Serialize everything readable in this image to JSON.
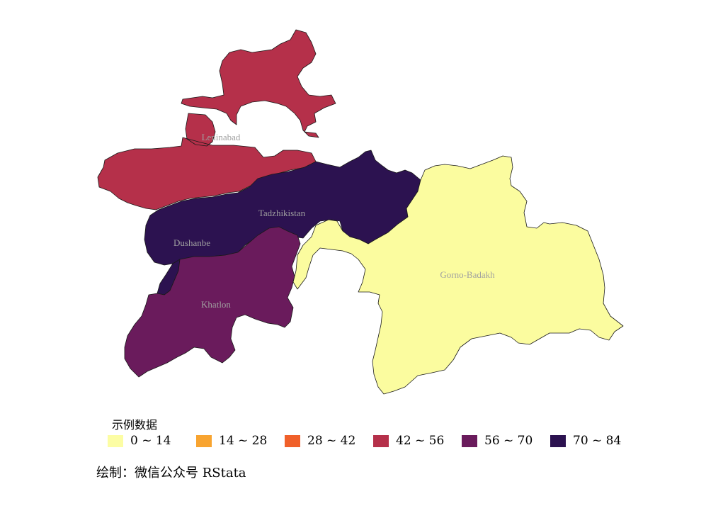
{
  "map": {
    "regions": [
      {
        "name": "Leninabad",
        "value_bin": "42 ~ 56",
        "color": "#b5304a"
      },
      {
        "name": "Tadzhikistan",
        "value_bin": "70 ~ 84",
        "color": "#2c1250"
      },
      {
        "name": "Dushanbe",
        "value_bin": "70 ~ 84",
        "color": "#2c1250"
      },
      {
        "name": "Khatlon",
        "value_bin": "56 ~ 70",
        "color": "#6a1b5c"
      },
      {
        "name": "Gorno-Badakh",
        "value_bin": "0 ~ 14",
        "color": "#fbfc9f"
      }
    ]
  },
  "legend": {
    "title": "示例数据",
    "items": [
      {
        "label": "0 ~ 14",
        "color": "#fcfda4"
      },
      {
        "label": "14 ~ 28",
        "color": "#f8a430"
      },
      {
        "label": "28 ~ 42",
        "color": "#f0602a"
      },
      {
        "label": "42 ~ 56",
        "color": "#b5304a"
      },
      {
        "label": "56 ~ 70",
        "color": "#6a1b5c"
      },
      {
        "label": "70 ~ 84",
        "color": "#2c1250"
      }
    ]
  },
  "caption": "绘制：微信公众号 RStata"
}
